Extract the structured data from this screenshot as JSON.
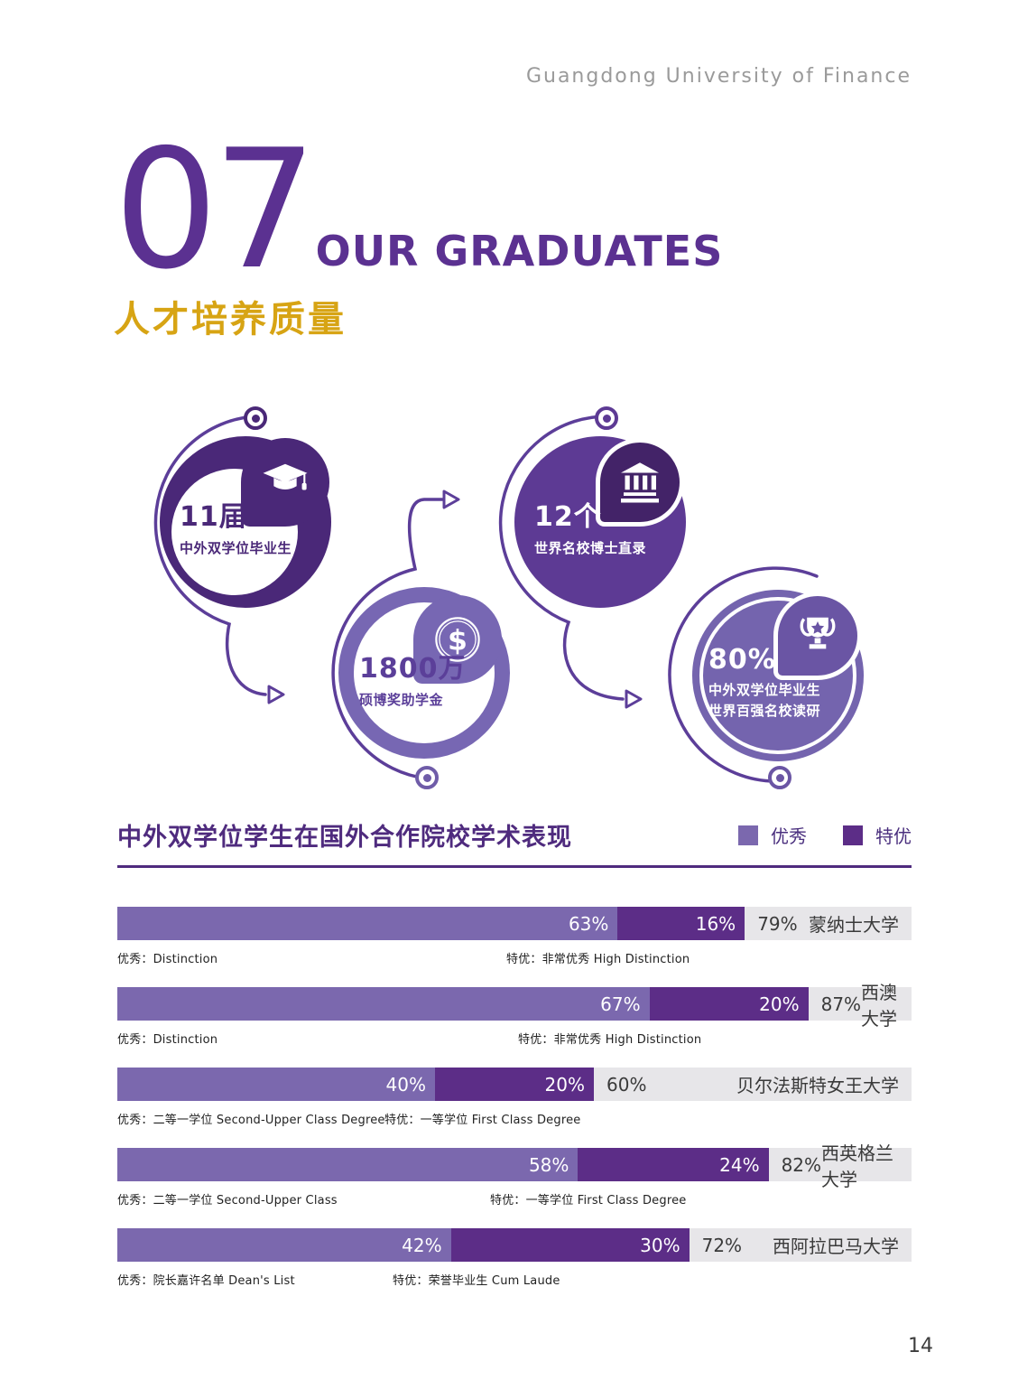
{
  "brand": "Guangdong University of Finance",
  "page_number": "14",
  "section": {
    "number": "07",
    "title_en": "OUR GRADUATES",
    "title_zh": "人才培养质量"
  },
  "colors": {
    "primary_purple": "#5b3191",
    "dark_purple": "#5c2d87",
    "light_purple": "#7b68ae",
    "gold": "#d7a414",
    "bar_gray": "#e7e6e9"
  },
  "stats": [
    {
      "value": "11届",
      "label": "中外双学位毕业生",
      "icon": "graduation-cap-icon"
    },
    {
      "value": "12个",
      "label": "世界名校博士直录",
      "icon": "bank-icon"
    },
    {
      "value": "1800万",
      "label": "硕博奖助学金",
      "icon": "dollar-coin-icon"
    },
    {
      "value": "80%",
      "label": "中外双学位毕业生",
      "label2": "世界百强名校读研",
      "icon": "trophy-icon"
    }
  ],
  "chart_data": {
    "type": "bar",
    "orientation": "horizontal",
    "title": "中外双学位学生在国外合作院校学术表现",
    "legend": [
      {
        "label": "优秀",
        "color": "#7b68ae"
      },
      {
        "label": "特优",
        "color": "#5c2d87"
      }
    ],
    "categories": [
      "蒙纳士大学",
      "西澳大学",
      "贝尔法斯特女王大学",
      "西英格兰大学",
      "西阿拉巴马大学"
    ],
    "series": [
      {
        "name": "优秀",
        "values": [
          63,
          67,
          40,
          58,
          42
        ]
      },
      {
        "name": "特优",
        "values": [
          16,
          20,
          20,
          24,
          30
        ]
      }
    ],
    "totals": [
      79,
      87,
      60,
      82,
      72
    ],
    "xlim": [
      0,
      100
    ],
    "rows": [
      {
        "university": "蒙纳士大学",
        "excellent": 63,
        "distinguished": 16,
        "total": 79,
        "excellent_label": "63%",
        "distinguished_label": "16%",
        "total_label": "79%",
        "note_excellent": "优秀：Distinction",
        "note_distinguished": "特优：非常优秀 High Distinction"
      },
      {
        "university": "西澳大学",
        "excellent": 67,
        "distinguished": 20,
        "total": 87,
        "excellent_label": "67%",
        "distinguished_label": "20%",
        "total_label": "87%",
        "note_excellent": "优秀：Distinction",
        "note_distinguished": "特优：非常优秀 High Distinction"
      },
      {
        "university": "贝尔法斯特女王大学",
        "excellent": 40,
        "distinguished": 20,
        "total": 60,
        "excellent_label": "40%",
        "distinguished_label": "20%",
        "total_label": "60%",
        "note_excellent": "优秀：二等一学位 Second-Upper Class Degree",
        "note_distinguished": "特优：一等学位 First Class Degree"
      },
      {
        "university": "西英格兰大学",
        "excellent": 58,
        "distinguished": 24,
        "total": 82,
        "excellent_label": "58%",
        "distinguished_label": "24%",
        "total_label": "82%",
        "note_excellent": "优秀：二等一学位 Second-Upper Class",
        "note_distinguished": "特优：一等学位 First Class Degree"
      },
      {
        "university": "西阿拉巴马大学",
        "excellent": 42,
        "distinguished": 30,
        "total": 72,
        "excellent_label": "42%",
        "distinguished_label": "30%",
        "total_label": "72%",
        "note_excellent": "优秀：院长嘉许名单 Dean's List",
        "note_distinguished": "特优：荣誉毕业生 Cum Laude"
      }
    ]
  }
}
